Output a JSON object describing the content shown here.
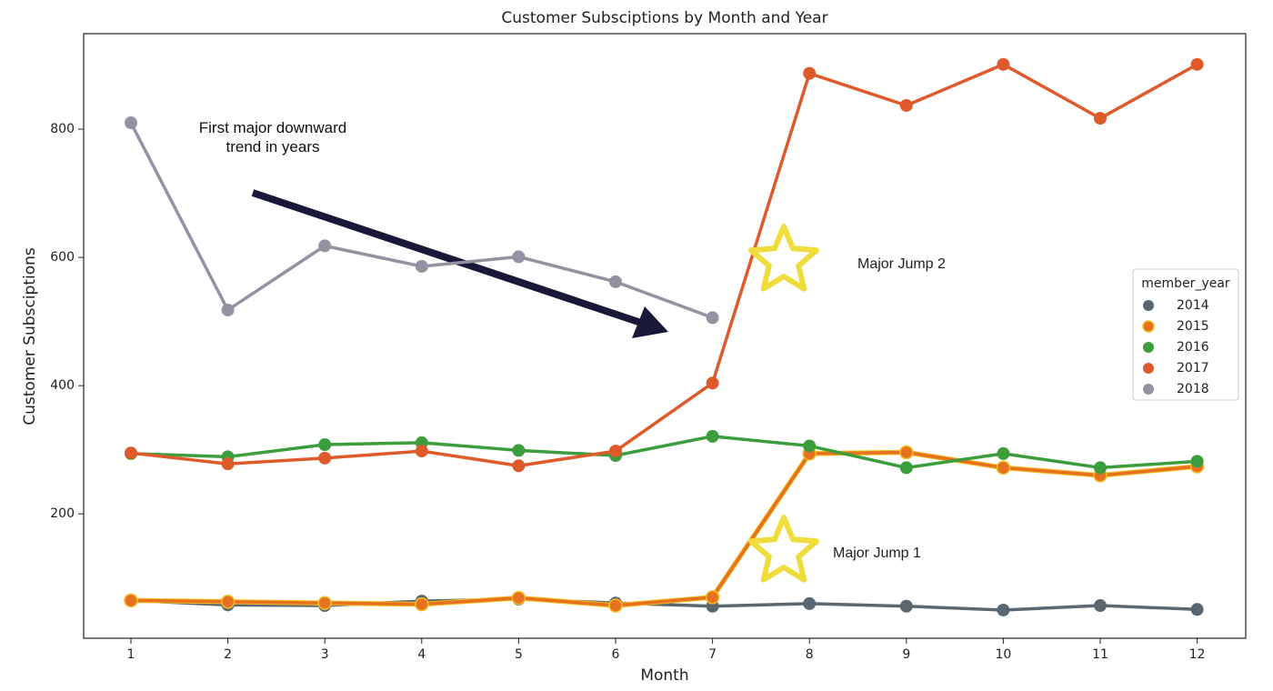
{
  "chart_data": {
    "type": "line",
    "title": "Customer Subsciptions by Month and Year",
    "xlabel": "Month",
    "ylabel": "Customer Subsciptions",
    "categories": [
      1,
      2,
      3,
      4,
      5,
      6,
      7,
      8,
      9,
      10,
      11,
      12
    ],
    "ylim": [
      6,
      949
    ],
    "yticks": [
      200,
      400,
      600,
      800
    ],
    "legend_title": "member_year",
    "legend": "right",
    "series": [
      {
        "name": "2014",
        "color": "#5a6670",
        "values": [
          65,
          58,
          57,
          64,
          67,
          61,
          56,
          60,
          56,
          50,
          57,
          51
        ]
      },
      {
        "name": "2015",
        "color": "#e8711f",
        "edge_color": "#f0c020",
        "values": [
          65,
          63,
          61,
          59,
          69,
          57,
          70,
          294,
          296,
          272,
          260,
          274
        ]
      },
      {
        "name": "2016",
        "color": "#3c9d3c",
        "values": [
          294,
          289,
          308,
          311,
          299,
          291,
          321,
          306,
          272,
          294,
          272,
          282
        ]
      },
      {
        "name": "2017",
        "color": "#df5a2b",
        "values": [
          295,
          278,
          287,
          298,
          275,
          298,
          404,
          887,
          837,
          901,
          817,
          901
        ]
      },
      {
        "name": "2018",
        "color": "#9491a3",
        "values": [
          810,
          518,
          618,
          586,
          601,
          562,
          506,
          null,
          null,
          null,
          null,
          null
        ]
      }
    ],
    "annotations": [
      "First major downward trend in years",
      "Major Jump 2",
      "Major Jump 1"
    ]
  }
}
